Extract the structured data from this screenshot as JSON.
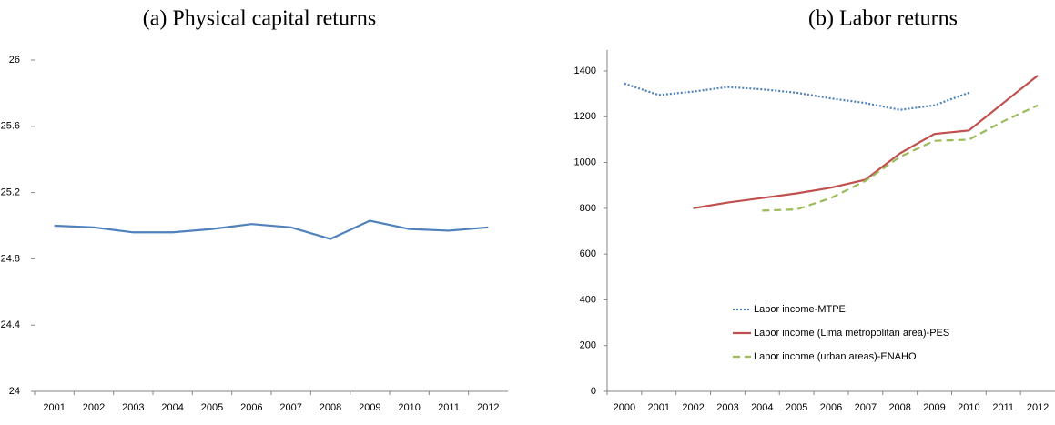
{
  "chart_data": [
    {
      "type": "line",
      "title": "(a) Physical capital returns",
      "categories": [
        "2001",
        "2002",
        "2003",
        "2004",
        "2005",
        "2006",
        "2007",
        "2008",
        "2009",
        "2010",
        "2011",
        "2012"
      ],
      "series": [
        {
          "name": "Physical capital returns",
          "color": "#4f81bd",
          "style": "solid",
          "values": [
            25.0,
            24.99,
            24.96,
            24.96,
            24.98,
            25.01,
            24.99,
            24.92,
            25.03,
            24.98,
            24.97,
            24.99
          ]
        }
      ],
      "ylim": [
        24,
        26
      ],
      "yticks": [
        24,
        24.4,
        24.8,
        25.2,
        25.6,
        26
      ],
      "grid": false,
      "legend": false
    },
    {
      "type": "line",
      "title": "(b) Labor returns",
      "categories": [
        "2000",
        "2001",
        "2002",
        "2003",
        "2004",
        "2005",
        "2006",
        "2007",
        "2008",
        "2009",
        "2010",
        "2011",
        "2012"
      ],
      "series": [
        {
          "name": "Labor income-MTPE",
          "color": "#4f81bd",
          "style": "dotted",
          "values": [
            1345,
            1295,
            1310,
            1330,
            1320,
            1305,
            1280,
            1260,
            1230,
            1250,
            1305,
            null,
            null
          ]
        },
        {
          "name": "Labor income (Lima metropolitan area)-PES",
          "color": "#c0504d",
          "style": "solid",
          "values": [
            null,
            null,
            800,
            825,
            845,
            865,
            890,
            925,
            1040,
            1125,
            1140,
            1260,
            1380
          ]
        },
        {
          "name": "Labor income (urban areas)-ENAHO",
          "color": "#9bbb59",
          "style": "dashed",
          "values": [
            null,
            null,
            null,
            null,
            790,
            795,
            845,
            920,
            1025,
            1095,
            1100,
            1180,
            1250
          ]
        }
      ],
      "ylim": [
        0,
        1400
      ],
      "yticks": [
        0,
        200,
        400,
        600,
        800,
        1000,
        1200,
        1400
      ],
      "grid": false,
      "legend": "center"
    }
  ]
}
